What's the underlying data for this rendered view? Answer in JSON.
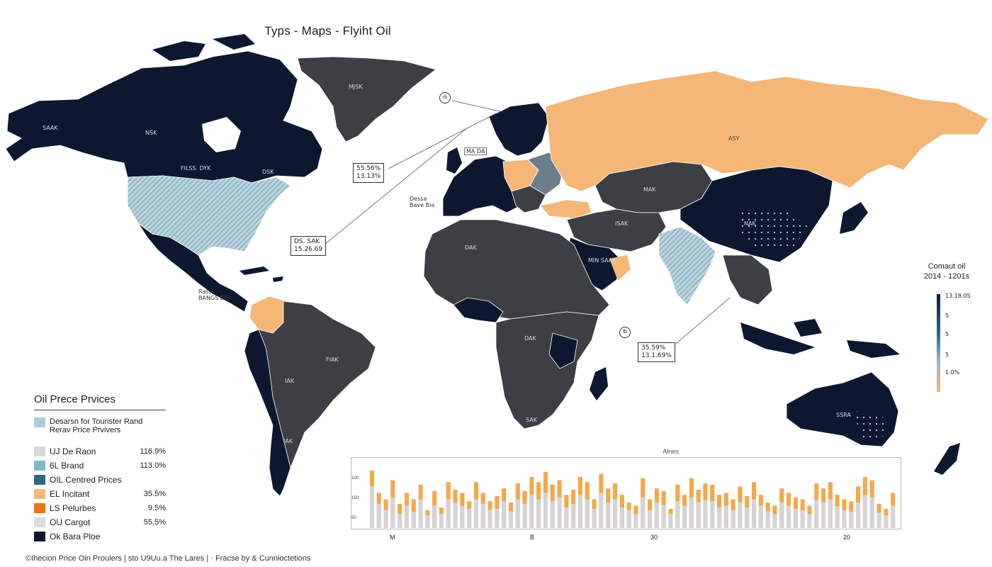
{
  "title": "Typs - Maps - Flyiht Oil",
  "colors": {
    "ocean": "#ffffff",
    "dark_navy": "#0d1830",
    "dark_gray": "#3e3f45",
    "orange": "#f4b778",
    "light_blue": "#b7d3dd",
    "steel": "#6c7d8c"
  },
  "country_labels": {
    "alaska": "SAAK",
    "canada_north": "NSK",
    "canada_south": "FILSS. DYK",
    "quebec": "DSK",
    "greenland": "MJSK",
    "russia": "ASY",
    "central_asia": "MAK",
    "china": "NAK",
    "arabia": "MIN SAAK",
    "middle_east": "ISAK",
    "north_africa": "DAK",
    "brazil": "FIAK",
    "andes": "IAK",
    "southern_cone": "IAK",
    "south_africa": "SAK",
    "east_africa": "DAK",
    "australia": "SSRA"
  },
  "callouts": {
    "circle_top": "rb",
    "box_europe": [
      "55.56%",
      "13.13%"
    ],
    "box_atlantic": [
      "DS. SAK",
      "15.26.69"
    ],
    "box_indian": [
      "35.59%",
      "13.1.69%"
    ],
    "note_europe": [
      "Dessa",
      "Bave Bia"
    ],
    "note_caribbean": [
      "Rasse",
      "BANGS    DID"
    ],
    "note_small": "MA DA",
    "circle_indian": "fb"
  },
  "legend": {
    "title": "Oil Prece Prvices",
    "description": [
      "Desarsn for Tourister Rand",
      "Rerav Price Prvivers"
    ],
    "items": [
      {
        "label": "UJ De Raon",
        "value": "116.9%",
        "color": "#d8d9db"
      },
      {
        "label": "6L Brand",
        "value": "113.0%",
        "color": "#7fb9c8"
      },
      {
        "label": "OIL Centred Prices",
        "value": "",
        "color": "#2f6a84"
      },
      {
        "label": "EL Incitant",
        "value": "35.5%",
        "color": "#f4b778"
      },
      {
        "label": "LS Pelurbes",
        "value": "9.5%",
        "color": "#f07318"
      },
      {
        "label": "OU Cargot",
        "value": "55.5%",
        "color": "#dcdcdf"
      },
      {
        "label": "Ok Bara Ploe",
        "value": "",
        "color": "#0d1830"
      }
    ],
    "desc_color": "#a9d0dc"
  },
  "color_scale": {
    "title": "Comaut oil",
    "subtitle": "2014 - 1201s",
    "ticks": [
      "13.18.05",
      "5",
      "5",
      "5",
      "1.0%"
    ]
  },
  "chart_data": {
    "type": "bar",
    "title": "Alnes",
    "y_ticks": [
      "100",
      "150",
      "50"
    ],
    "x_ticks": [
      "M",
      "B",
      "30",
      "20"
    ],
    "series": [
      {
        "color": "#f4a84c",
        "values": [
          90,
          55,
          45,
          75,
          38,
          55,
          45,
          68,
          28,
          58,
          32,
          72,
          60,
          55,
          42,
          72,
          55,
          42,
          50,
          62,
          40,
          70,
          58,
          80,
          72,
          88,
          68,
          75,
          52,
          60,
          80,
          72,
          45,
          85,
          62,
          70,
          52,
          40,
          35,
          78,
          45,
          62,
          58,
          30,
          68,
          52,
          78,
          60,
          70,
          68,
          52,
          55,
          45,
          65,
          50,
          72,
          52,
          40,
          35,
          62,
          55,
          48,
          45,
          35,
          70,
          62,
          72,
          52,
          45,
          42,
          65,
          80,
          75,
          38,
          30,
          55
        ]
      },
      {
        "color": "#d4d4d6",
        "values": [
          65,
          38,
          28,
          48,
          22,
          35,
          25,
          45,
          20,
          35,
          22,
          45,
          40,
          35,
          30,
          45,
          38,
          28,
          30,
          42,
          26,
          45,
          38,
          52,
          45,
          55,
          42,
          48,
          32,
          38,
          52,
          45,
          30,
          55,
          40,
          45,
          32,
          28,
          22,
          48,
          28,
          40,
          36,
          22,
          42,
          35,
          48,
          40,
          44,
          42,
          32,
          35,
          28,
          40,
          32,
          45,
          35,
          26,
          22,
          40,
          35,
          30,
          28,
          22,
          44,
          40,
          45,
          34,
          28,
          26,
          40,
          52,
          48,
          24,
          20,
          35
        ]
      }
    ],
    "ylim": [
      0,
      100
    ]
  },
  "footer": "©Ihecion Price Oin Proulers  |  sto U9Uu.a The Lares  |  ·  Fracse by & Cunnioctetions"
}
